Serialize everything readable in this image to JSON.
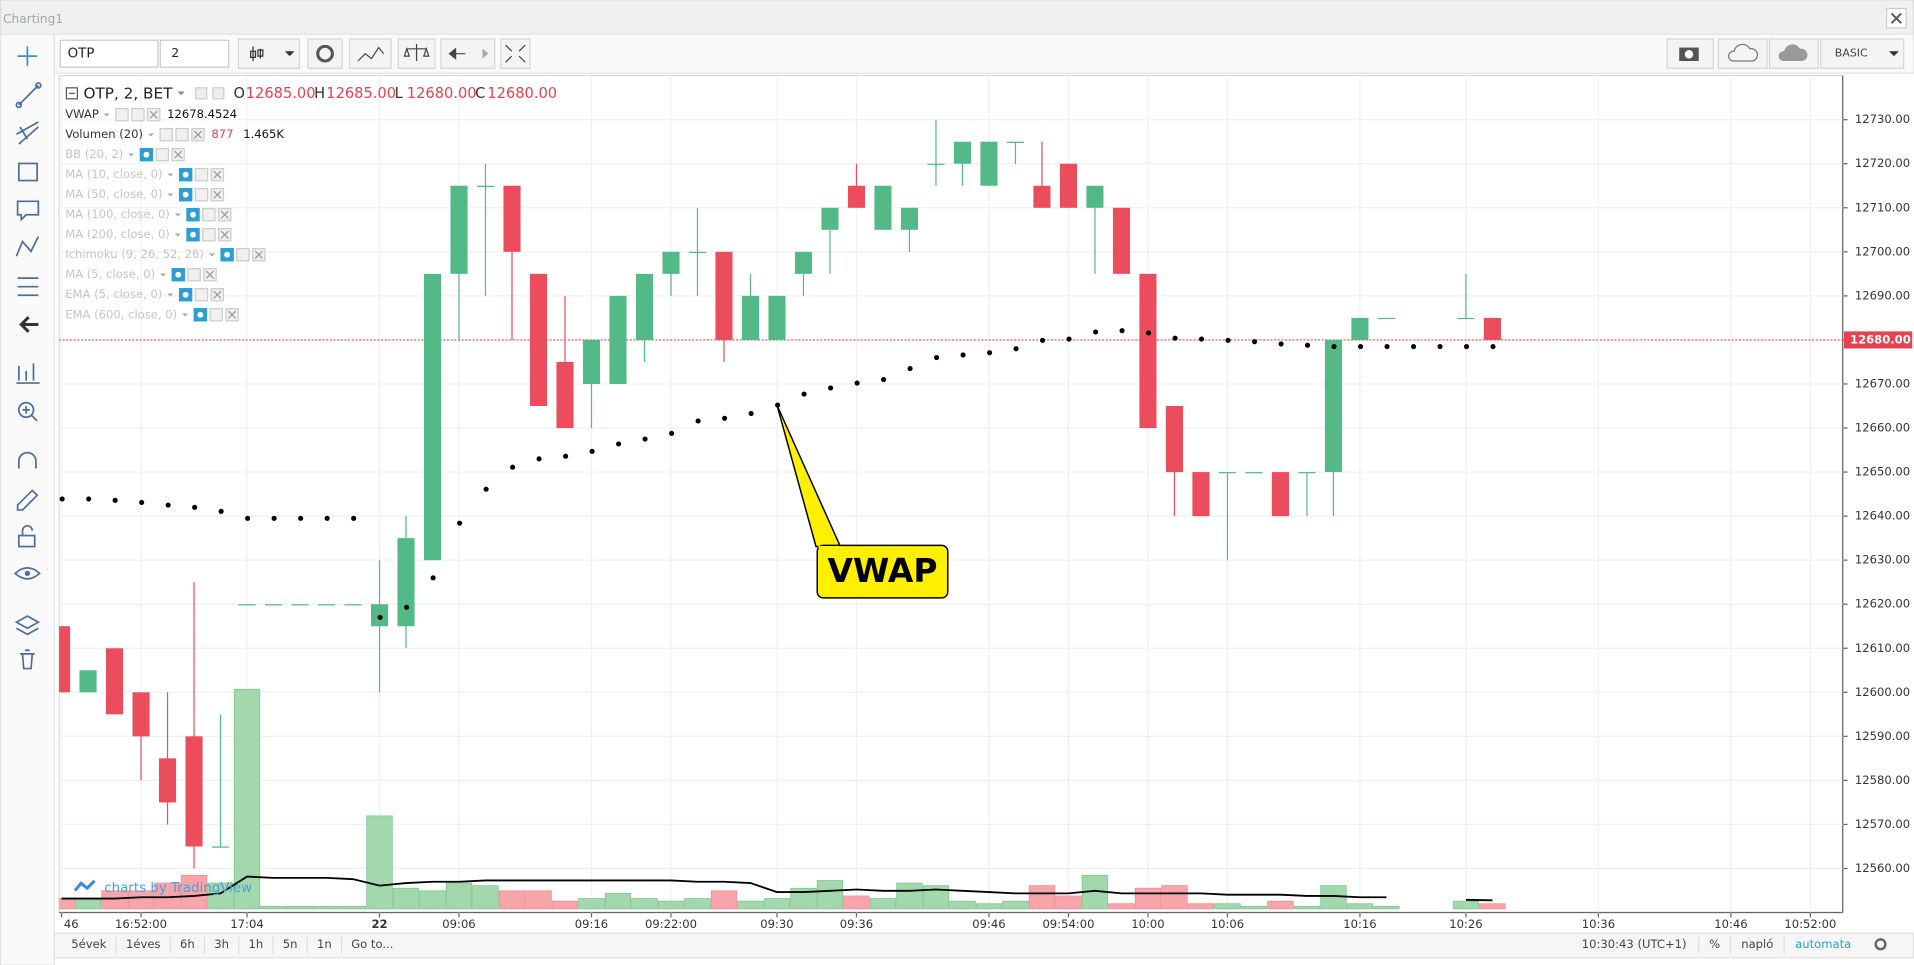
{
  "window_title": "Charting1",
  "toolbar": {
    "symbol": "OTP",
    "interval": "2",
    "mode": "BASIC"
  },
  "header": {
    "symbol": "OTP, 2, BET",
    "ohlc": [
      {
        "key": "O",
        "value": "12685.00"
      },
      {
        "key": "H",
        "value": "12685.00"
      },
      {
        "key": "L",
        "value": "12680.00"
      },
      {
        "key": "C",
        "value": "12680.00"
      }
    ]
  },
  "indicators": [
    {
      "label": "VWAP",
      "value": "12678.4524"
    },
    {
      "label": "Volumen (20)",
      "value": "877",
      "value2": "1.465K"
    },
    {
      "label": "BB (20, 2)",
      "hidden": true
    },
    {
      "label": "MA (10, close, 0)",
      "hidden": true
    },
    {
      "label": "MA (50, close, 0)",
      "hidden": true
    },
    {
      "label": "MA (100, close, 0)",
      "hidden": true
    },
    {
      "label": "MA (200, close, 0)",
      "hidden": true
    },
    {
      "label": "Ichimoku (9, 26, 52, 26)",
      "hidden": true
    },
    {
      "label": "MA (5, close, 0)",
      "hidden": true
    },
    {
      "label": "EMA (5, close, 0)",
      "hidden": true
    },
    {
      "label": "EMA (600, close, 0)",
      "hidden": true
    }
  ],
  "watermark": "charts by TradingView",
  "bottom_bar": {
    "ranges": [
      "5évek",
      "1éves",
      "6h",
      "3h",
      "1h",
      "5n",
      "1n"
    ],
    "goto": "Go to...",
    "clock": "10:30:43 (UTC+1)",
    "percent": "%",
    "log": "napló",
    "auto": "automata"
  },
  "chart_data": {
    "type": "candlestick",
    "categories": [
      "46",
      null,
      null,
      "16:52:00",
      null,
      null,
      null,
      "17:04",
      null,
      null,
      null,
      null,
      "22",
      null,
      null,
      "09:06",
      null,
      null,
      null,
      null,
      "09:16",
      null,
      null,
      "09:22:00",
      null,
      null,
      null,
      "09:30",
      null,
      null,
      "09:36",
      null,
      null,
      null,
      null,
      "09:46",
      null,
      null,
      "09:54:00",
      null,
      null,
      "10:00",
      null,
      null,
      "10:06",
      null,
      null,
      null,
      null,
      "10:16",
      null,
      null,
      null,
      "10:26",
      null,
      null,
      null,
      null,
      "10:36",
      null,
      null,
      null,
      null,
      "10:46",
      null,
      null,
      "10:52:00"
    ],
    "open": [
      12615,
      12600,
      12610,
      12600,
      12585,
      12590,
      12565,
      12620,
      12620,
      12620,
      12620,
      12620,
      12615,
      12615,
      12630,
      12695,
      12715,
      12715,
      12695,
      12675,
      12670,
      12670,
      12680,
      12695,
      12700,
      12700,
      12680,
      12680,
      12695,
      12705,
      12715,
      12705,
      12705,
      12720,
      12720,
      12715,
      12725,
      12715,
      12720,
      12710,
      12710,
      12695,
      12665,
      12650,
      12650,
      12650,
      12650,
      12650,
      12650,
      12680,
      12685,
      null,
      null,
      12685,
      12685,
      null,
      null,
      null,
      null,
      null,
      null,
      null,
      null,
      null,
      null,
      null,
      null
    ],
    "high": [
      12615,
      12605,
      12610,
      12600,
      12600,
      12625,
      12595,
      12620,
      12620,
      12620,
      12620,
      12620,
      12630,
      12640,
      12695,
      12715,
      12720,
      12715,
      12695,
      12690,
      12680,
      12690,
      12695,
      12700,
      12710,
      12700,
      12695,
      12690,
      12700,
      12710,
      12720,
      12715,
      12710,
      12730,
      12725,
      12725,
      12725,
      12725,
      12720,
      12715,
      12710,
      12695,
      12665,
      12650,
      12650,
      12650,
      12650,
      12650,
      12680,
      12685,
      12685,
      null,
      null,
      12695,
      12685,
      null,
      null,
      null,
      null,
      null,
      null,
      null,
      null,
      null,
      null,
      null,
      null
    ],
    "low": [
      12600,
      12600,
      12595,
      12580,
      12570,
      12560,
      12565,
      12620,
      12620,
      12620,
      12620,
      12620,
      12600,
      12610,
      12630,
      12680,
      12690,
      12680,
      12665,
      12660,
      12660,
      12670,
      12675,
      12690,
      12690,
      12675,
      12680,
      12680,
      12690,
      12695,
      12710,
      12705,
      12700,
      12715,
      12715,
      12715,
      12720,
      12710,
      12710,
      12695,
      12695,
      12660,
      12640,
      12640,
      12630,
      12650,
      12640,
      12640,
      12640,
      12680,
      12685,
      null,
      null,
      12685,
      12680,
      null,
      null,
      null,
      null,
      null,
      null,
      null,
      null,
      null,
      null,
      null,
      null
    ],
    "close": [
      12600,
      12605,
      12595,
      12590,
      12575,
      12565,
      12565,
      12620,
      12620,
      12620,
      12620,
      12620,
      12620,
      12635,
      12695,
      12715,
      12715,
      12700,
      12665,
      12660,
      12680,
      12690,
      12695,
      12700,
      12700,
      12680,
      12690,
      12690,
      12700,
      12710,
      12710,
      12715,
      12710,
      12720,
      12725,
      12725,
      12725,
      12710,
      12710,
      12715,
      12695,
      12660,
      12650,
      12640,
      12650,
      12650,
      12640,
      12650,
      12680,
      12685,
      12685,
      null,
      null,
      12685,
      12680,
      null,
      null,
      null,
      null,
      null,
      null,
      null,
      null,
      null,
      null,
      null,
      null
    ],
    "volume": [
      1760,
      1760,
      3080,
      3080,
      4400,
      5720,
      4400,
      37400,
      440,
      440,
      440,
      440,
      15840,
      3520,
      3080,
      4400,
      3960,
      3080,
      3080,
      1320,
      1760,
      2640,
      1760,
      1320,
      1760,
      3080,
      1320,
      1760,
      3520,
      4840,
      2200,
      1760,
      4400,
      3960,
      1320,
      880,
      1320,
      3960,
      2200,
      5720,
      880,
      3520,
      3960,
      880,
      880,
      440,
      1320,
      440,
      3960,
      880,
      440,
      null,
      null,
      1320,
      877,
      null,
      null,
      null,
      null,
      null,
      null,
      null,
      null,
      null,
      null,
      null,
      null
    ],
    "volume_ma": [
      1760,
      1760,
      1760,
      1980,
      1980,
      2200,
      2640,
      5500,
      5280,
      5280,
      5280,
      5060,
      3960,
      4400,
      4620,
      4620,
      4840,
      4840,
      4840,
      4840,
      4840,
      4840,
      4840,
      4840,
      4620,
      4620,
      4400,
      2860,
      2860,
      3080,
      3300,
      3080,
      3080,
      3300,
      3080,
      2860,
      2640,
      2640,
      2640,
      3080,
      2640,
      2640,
      2640,
      2640,
      2420,
      2420,
      2420,
      2200,
      2200,
      1980,
      1980,
      null,
      null,
      1540,
      1465,
      null,
      null,
      null,
      null,
      null,
      null,
      null,
      null,
      null,
      null,
      null,
      null
    ],
    "vwap": [
      12643.9,
      12643.9,
      12643.6,
      12643.1,
      12642.5,
      12642.0,
      12641.1,
      12639.5,
      12639.5,
      12639.5,
      12639.5,
      12639.5,
      12617.0,
      12619.3,
      12626.0,
      12638.4,
      12646.1,
      12651.1,
      12653.0,
      12653.6,
      12654.7,
      12656.4,
      12657.5,
      12658.8,
      12661.6,
      12662.2,
      12663.3,
      12665.2,
      12667.7,
      12669.1,
      12670.2,
      12671.0,
      12673.5,
      12676.0,
      12676.6,
      12677.1,
      12678.0,
      12679.9,
      12680.2,
      12681.8,
      12682.1,
      12681.6,
      12680.4,
      12680.2,
      12679.9,
      12679.6,
      12679.1,
      12678.8,
      12678.5,
      12678.5,
      12678.5,
      12678.5,
      12678.5,
      12678.5,
      12678.5,
      null,
      null,
      null,
      null,
      null,
      null,
      null,
      null,
      null,
      null,
      null,
      null
    ],
    "up_color": "#53b987",
    "down_color": "#eb4d5c",
    "volume_up_color": "#a3d8ad",
    "volume_down_color": "#f7a5ab",
    "vwap_color": "#000000",
    "volume_ma_color": "#000000",
    "ylim": [
      12550,
      12740
    ],
    "yticks": [
      {
        "value": 12560,
        "label": "12560.00"
      },
      {
        "value": 12570,
        "label": "12570.00"
      },
      {
        "value": 12580,
        "label": "12580.00"
      },
      {
        "value": 12590,
        "label": "12590.00"
      },
      {
        "value": 12600,
        "label": "12600.00"
      },
      {
        "value": 12610,
        "label": "12610.00"
      },
      {
        "value": 12620,
        "label": "12620.00"
      },
      {
        "value": 12630,
        "label": "12630.00"
      },
      {
        "value": 12640,
        "label": "12640.00"
      },
      {
        "value": 12650,
        "label": "12650.00"
      },
      {
        "value": 12660,
        "label": "12660.00"
      },
      {
        "value": 12670,
        "label": "12670.00"
      },
      {
        "value": 12680,
        "label": "12680.00"
      },
      {
        "value": 12690,
        "label": "12690.00"
      },
      {
        "value": 12700,
        "label": "12700.00"
      },
      {
        "value": 12710,
        "label": "12710.00"
      },
      {
        "value": 12720,
        "label": "12720.00"
      },
      {
        "value": 12730,
        "label": "12730.00"
      }
    ],
    "last_price": {
      "value": 12680,
      "label": "12680.00"
    },
    "grid": true,
    "annotation": {
      "text": "VWAP",
      "index": 27
    }
  }
}
